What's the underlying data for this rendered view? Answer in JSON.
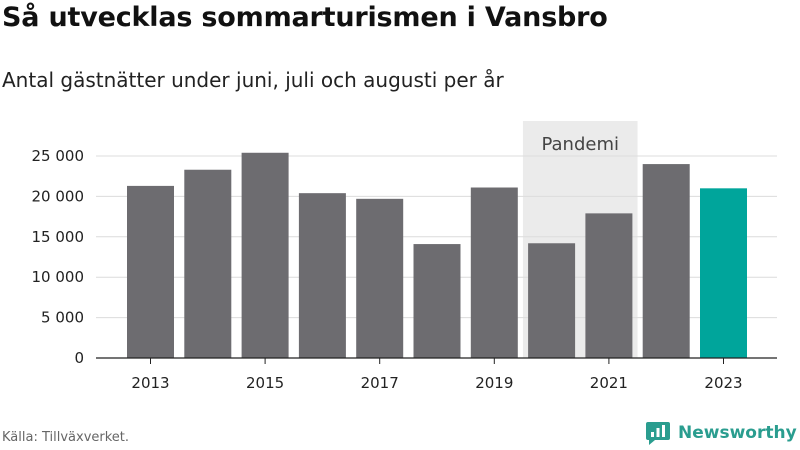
{
  "header": {
    "title": "Så utvecklas sommarturismen i Vansbro",
    "subtitle": "Antal gästnätter under juni, juli och augusti per år"
  },
  "footer": {
    "source": "Källa: Tillväxverket.",
    "brand": "Newsworthy",
    "brand_icon": "newsworthy-logo-icon"
  },
  "colors": {
    "bar": "#6d6c70",
    "highlight": "#00a59b",
    "shade": "#ebebeb",
    "grid": "#dcdcdc",
    "text": "#222222",
    "brand": "#2a9d8f"
  },
  "chart_data": {
    "type": "bar",
    "categories": [
      "2013",
      "2014",
      "2015",
      "2016",
      "2017",
      "2018",
      "2019",
      "2020",
      "2021",
      "2022",
      "2023"
    ],
    "values": [
      21300,
      23300,
      25400,
      20400,
      19700,
      14100,
      21100,
      14200,
      17900,
      24000,
      21000
    ],
    "highlight_category": "2023",
    "x_tick_labels": [
      "2013",
      "2015",
      "2017",
      "2019",
      "2021",
      "2023"
    ],
    "y_ticks": [
      0,
      5000,
      10000,
      15000,
      20000,
      25000
    ],
    "y_tick_labels": [
      "0",
      "5 000",
      "10 000",
      "15 000",
      "20 000",
      "25 000"
    ],
    "ylim": [
      0,
      25000
    ],
    "grid": true,
    "annotations": [
      {
        "label": "Pandemi",
        "from": "2020",
        "to": "2021"
      }
    ]
  }
}
